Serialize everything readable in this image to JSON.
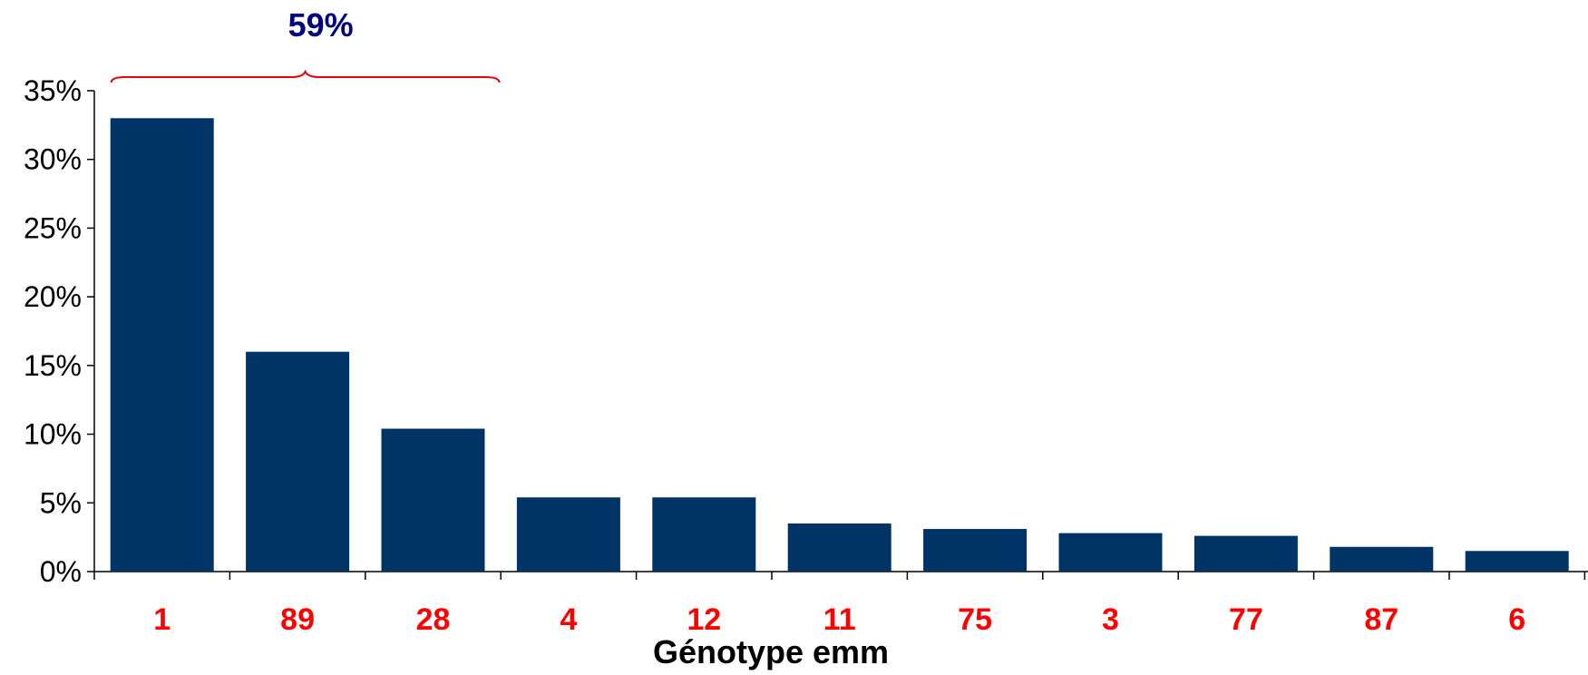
{
  "chart_data": {
    "type": "bar",
    "categories": [
      "1",
      "89",
      "28",
      "4",
      "12",
      "11",
      "75",
      "3",
      "77",
      "87",
      "6"
    ],
    "values": [
      33.0,
      16.0,
      10.4,
      5.4,
      5.4,
      3.5,
      3.1,
      2.8,
      2.6,
      1.8,
      1.5
    ],
    "title": "",
    "xlabel": "Génotype emm",
    "ylabel": "",
    "ylim": [
      0,
      35
    ],
    "yticks": [
      "0%",
      "5%",
      "10%",
      "15%",
      "20%",
      "25%",
      "30%",
      "35%"
    ],
    "grid": false,
    "legend": "none",
    "annotation": {
      "text": "59%",
      "spans_categories": [
        "1",
        "89",
        "28"
      ]
    },
    "colors": {
      "bar": "#003366",
      "category_label": "#ff0000",
      "annotation_text": "#000080",
      "brace": "#e8000b",
      "axis": "#000000"
    }
  }
}
